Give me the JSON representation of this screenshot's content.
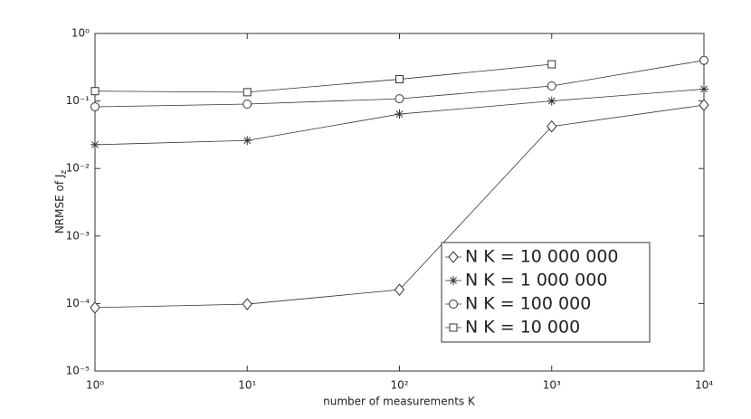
{
  "chart_data": {
    "type": "line",
    "log_x": true,
    "log_y": true,
    "xlabel": "number of measurements K",
    "ylabel": {
      "text": "NRMSE of J",
      "subscript": "z"
    },
    "x": [
      1,
      10,
      100,
      1000,
      10000
    ],
    "xlim": [
      1,
      10000
    ],
    "xticks": [
      {
        "value": 1,
        "label": "10⁰"
      },
      {
        "value": 10,
        "label": "10¹"
      },
      {
        "value": 100,
        "label": "10²"
      },
      {
        "value": 1000,
        "label": "10³"
      },
      {
        "value": 10000,
        "label": "10⁴"
      }
    ],
    "ylim": [
      1e-05,
      1
    ],
    "yticks": [
      {
        "value": 1e-05,
        "label": "10⁻⁵"
      },
      {
        "value": 0.0001,
        "label": "10⁻⁴"
      },
      {
        "value": 0.001,
        "label": "10⁻³"
      },
      {
        "value": 0.01,
        "label": "10⁻²"
      },
      {
        "value": 0.1,
        "label": "10⁻¹"
      },
      {
        "value": 1,
        "label": "10⁰"
      }
    ],
    "grid": false,
    "legend": "lower right",
    "series": [
      {
        "name": "N K = 10 000 000",
        "color": "#333333",
        "marker": "diamond",
        "values": [
          8.7e-05,
          9.8e-05,
          0.00016,
          0.042,
          0.087
        ]
      },
      {
        "name": "N K = 1 000 000",
        "color": "#333333",
        "marker": "star",
        "values": [
          0.0225,
          0.026,
          0.064,
          0.1,
          0.15
        ]
      },
      {
        "name": "N K = 100 000",
        "color": "#333333",
        "marker": "circle",
        "values": [
          0.082,
          0.09,
          0.108,
          0.167,
          0.4
        ]
      },
      {
        "name": "N K = 10 000",
        "color": "#333333",
        "marker": "square",
        "values": [
          0.14,
          0.135,
          0.21,
          0.35,
          null
        ]
      }
    ]
  }
}
